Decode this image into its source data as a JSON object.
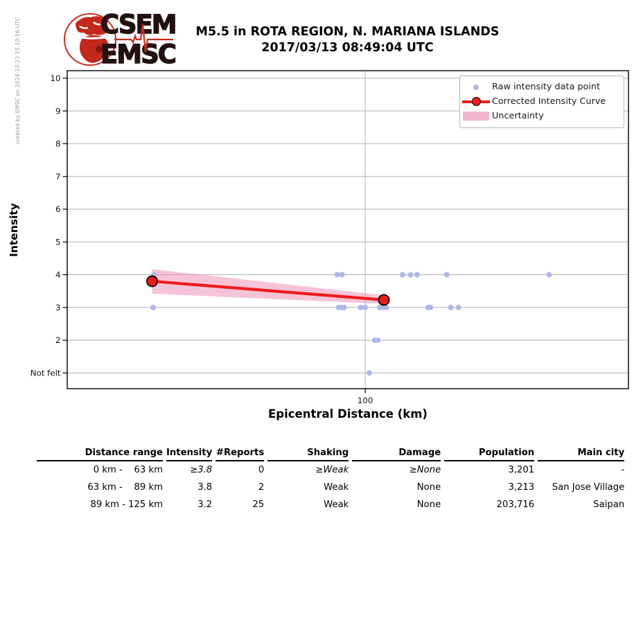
{
  "header": {
    "logo": {
      "line1": "CSEM",
      "line2": "EMSC"
    },
    "title_line1": "M5.5 in ROTA REGION, N. MARIANA ISLANDS",
    "title_line2": "2017/03/13 08:49:04 UTC",
    "credit": "created by EMSC on 2024-10-23 15:10:56 UTC"
  },
  "chart_data": {
    "type": "scatter",
    "xlabel": "Epicentral Distance (km)",
    "ylabel": "Intensity",
    "x_scale": "log",
    "xlim": [
      64.15,
      148.0
    ],
    "ylim": [
      0.52,
      10.23
    ],
    "grid": true,
    "x_ticks": [
      {
        "value": 100,
        "label": "100"
      }
    ],
    "y_ticks": [
      {
        "value": 10,
        "label": "10"
      },
      {
        "value": 9,
        "label": "9"
      },
      {
        "value": 8,
        "label": "8"
      },
      {
        "value": 7,
        "label": "7"
      },
      {
        "value": 6,
        "label": "6"
      },
      {
        "value": 5,
        "label": "5"
      },
      {
        "value": 4,
        "label": "4"
      },
      {
        "value": 3,
        "label": "3"
      },
      {
        "value": 2,
        "label": "2"
      },
      {
        "value": 1,
        "label": "Not felt"
      }
    ],
    "legend": [
      {
        "label": "Raw intensity data point",
        "type": "dot"
      },
      {
        "label": "Corrected Intensity Curve",
        "type": "line-marker"
      },
      {
        "label": "Uncertainty",
        "type": "band"
      }
    ],
    "raw_points": [
      {
        "intensity": 4,
        "km": [
          73.0,
          95.9,
          96.6,
          105.7,
          107.0,
          108.0,
          112.9,
          131.5
        ]
      },
      {
        "intensity": 3,
        "km": [
          72.9,
          96.1,
          96.5,
          96.9,
          99.3,
          100.0,
          102.2,
          102.7,
          103.2,
          109.8,
          110.2,
          113.6,
          114.9
        ]
      },
      {
        "intensity": 2,
        "km": [
          101.4,
          101.9
        ]
      },
      {
        "intensity": 1,
        "km": [
          100.6
        ]
      }
    ],
    "corrected_curve": [
      {
        "km": 72.8,
        "intensity": 3.8
      },
      {
        "km": 102.8,
        "intensity": 3.23
      }
    ],
    "uncertainty_band": [
      [
        72.8,
        4.17
      ],
      [
        103.8,
        3.35
      ],
      [
        103.8,
        3.1
      ],
      [
        72.8,
        3.42
      ]
    ],
    "colors": {
      "raw_point": "#aeb8e6",
      "curve": "#ec1c1c",
      "marker_edge": "#000000",
      "band": "#e87ba6",
      "grid": "#b2b2b2",
      "frame": "#000000"
    }
  },
  "table": {
    "headers": [
      "Distance range",
      "Intensity",
      "#Reports",
      "Shaking",
      "Damage",
      "Population",
      "Main city"
    ],
    "rows": [
      [
        " 0 km -  63 km",
        "≥3.8",
        "0",
        "≥Weak",
        "≥None",
        "3,201",
        "-"
      ],
      [
        "63 km -  89 km",
        "3.8",
        "2",
        "Weak",
        "None",
        "3,213",
        "San Jose Village"
      ],
      [
        "89 km - 125 km",
        "3.2",
        "25",
        "Weak",
        "None",
        "203,716",
        "Saipan"
      ]
    ]
  }
}
